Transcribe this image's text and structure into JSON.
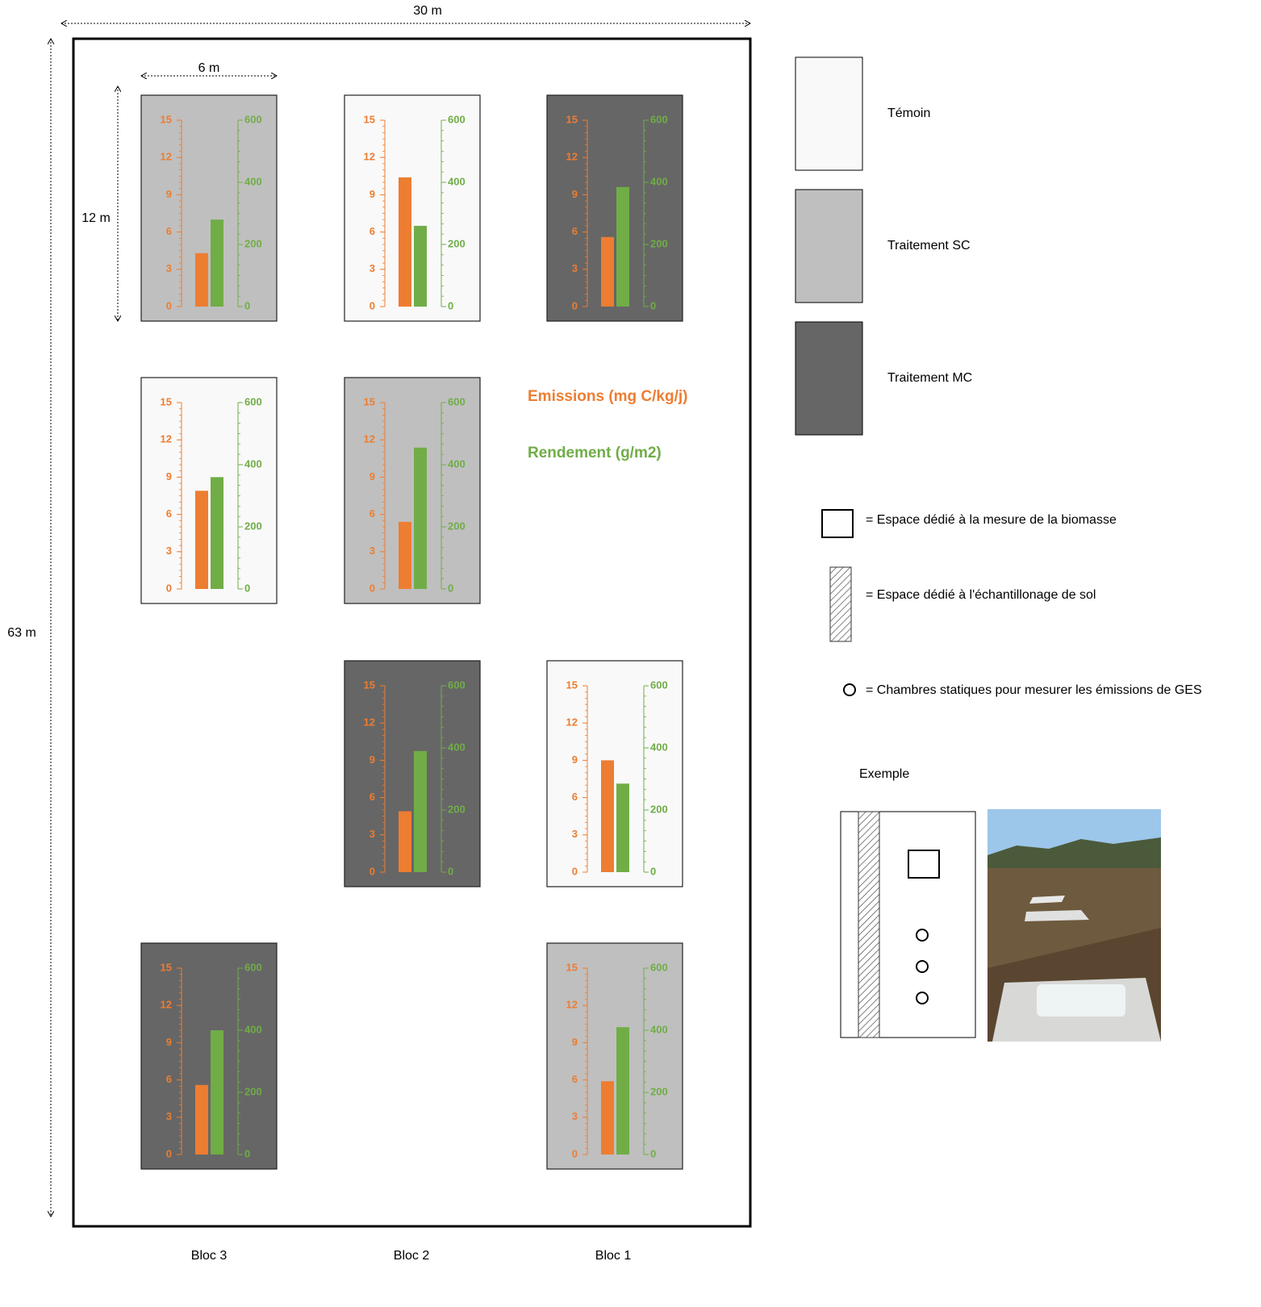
{
  "dimensions": {
    "width": "30 m",
    "height": "63 m",
    "plot_width": "6 m",
    "plot_height": "12 m"
  },
  "blocks": [
    "Bloc 3",
    "Bloc 2",
    "Bloc 1"
  ],
  "series_legend": [
    {
      "name": "Emissions (mg C/kg/j)",
      "color": "#ed7d31"
    },
    {
      "name": "Rendement (g/m2)",
      "color": "#70ad47"
    }
  ],
  "treatments": [
    {
      "label": "Témoin",
      "color": "#f9f9f9"
    },
    {
      "label": "Traitement SC",
      "color": "#bfbfbf"
    },
    {
      "label": "Traitement MC",
      "color": "#666666"
    }
  ],
  "symbols": [
    "= Espace dédié à la mesure de la biomasse",
    "= Espace dédié à l'échantillonage de sol",
    "= Chambres statiques pour mesurer les émissions de GES"
  ],
  "example_label": "Exemple",
  "chart_data": [
    {
      "type": "bar",
      "background": "#bfbfbf",
      "series": [
        {
          "values": [
            4.3
          ]
        },
        {
          "values": [
            280
          ],
          "axis": "y2"
        }
      ],
      "ylim": [
        0,
        15
      ],
      "yticks": [
        0,
        3,
        6,
        9,
        12,
        15
      ],
      "y2lim": [
        0,
        600
      ],
      "y2ticks": [
        0,
        200,
        400,
        600
      ]
    },
    {
      "type": "bar",
      "background": "#f9f9f9",
      "series": [
        {
          "values": [
            10.4
          ]
        },
        {
          "values": [
            260
          ],
          "axis": "y2"
        }
      ],
      "ylim": [
        0,
        15
      ],
      "yticks": [
        0,
        3,
        6,
        9,
        12,
        15
      ],
      "y2lim": [
        0,
        600
      ],
      "y2ticks": [
        0,
        200,
        400,
        600
      ]
    },
    {
      "type": "bar",
      "background": "#666666",
      "series": [
        {
          "values": [
            5.6
          ]
        },
        {
          "values": [
            385
          ],
          "axis": "y2"
        }
      ],
      "ylim": [
        0,
        15
      ],
      "yticks": [
        0,
        3,
        6,
        9,
        12,
        15
      ],
      "y2lim": [
        0,
        600
      ],
      "y2ticks": [
        0,
        200,
        400,
        600
      ]
    },
    {
      "type": "bar",
      "background": "#f9f9f9",
      "series": [
        {
          "values": [
            7.9
          ]
        },
        {
          "values": [
            360
          ],
          "axis": "y2"
        }
      ],
      "ylim": [
        0,
        15
      ],
      "yticks": [
        0,
        3,
        6,
        9,
        12,
        15
      ],
      "y2lim": [
        0,
        600
      ],
      "y2ticks": [
        0,
        200,
        400,
        600
      ]
    },
    {
      "type": "bar",
      "background": "#bfbfbf",
      "series": [
        {
          "values": [
            5.4
          ]
        },
        {
          "values": [
            455
          ],
          "axis": "y2"
        }
      ],
      "ylim": [
        0,
        15
      ],
      "yticks": [
        0,
        3,
        6,
        9,
        12,
        15
      ],
      "y2lim": [
        0,
        600
      ],
      "y2ticks": [
        0,
        200,
        400,
        600
      ]
    },
    {
      "type": "bar",
      "background": "#666666",
      "series": [
        {
          "values": [
            4.9
          ]
        },
        {
          "values": [
            390
          ],
          "axis": "y2"
        }
      ],
      "ylim": [
        0,
        15
      ],
      "yticks": [
        0,
        3,
        6,
        9,
        12,
        15
      ],
      "y2lim": [
        0,
        600
      ],
      "y2ticks": [
        0,
        200,
        400,
        600
      ]
    },
    {
      "type": "bar",
      "background": "#f9f9f9",
      "series": [
        {
          "values": [
            9.0
          ]
        },
        {
          "values": [
            285
          ],
          "axis": "y2"
        }
      ],
      "ylim": [
        0,
        15
      ],
      "yticks": [
        0,
        3,
        6,
        9,
        12,
        15
      ],
      "y2lim": [
        0,
        600
      ],
      "y2ticks": [
        0,
        200,
        400,
        600
      ]
    },
    {
      "type": "bar",
      "background": "#666666",
      "series": [
        {
          "values": [
            5.6
          ]
        },
        {
          "values": [
            400
          ],
          "axis": "y2"
        }
      ],
      "ylim": [
        0,
        15
      ],
      "yticks": [
        0,
        3,
        6,
        9,
        12,
        15
      ],
      "y2lim": [
        0,
        600
      ],
      "y2ticks": [
        0,
        200,
        400,
        600
      ]
    },
    {
      "type": "bar",
      "background": "#bfbfbf",
      "series": [
        {
          "values": [
            5.9
          ]
        },
        {
          "values": [
            410
          ],
          "axis": "y2"
        }
      ],
      "ylim": [
        0,
        15
      ],
      "yticks": [
        0,
        3,
        6,
        9,
        12,
        15
      ],
      "y2lim": [
        0,
        600
      ],
      "y2ticks": [
        0,
        200,
        400,
        600
      ]
    }
  ]
}
